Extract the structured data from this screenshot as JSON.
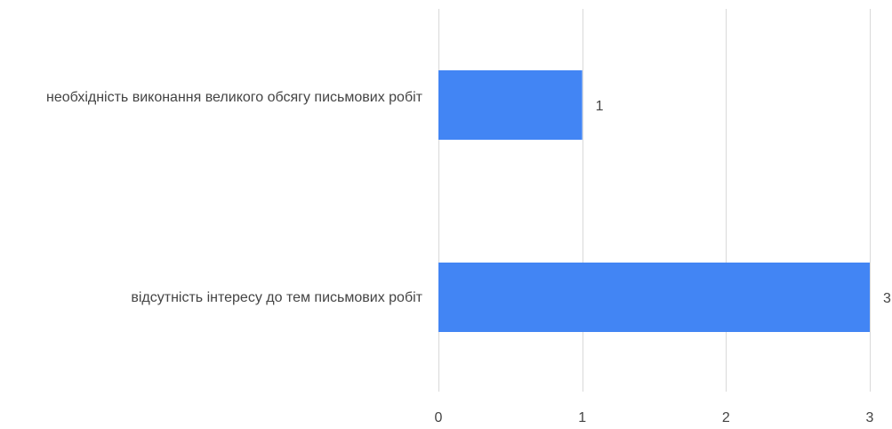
{
  "chart_data": {
    "type": "bar",
    "orientation": "horizontal",
    "categories": [
      "необхідність виконання великого обсягу письмових робіт",
      "відсутність інтересу до тем письмових робіт"
    ],
    "values": [
      1,
      3
    ],
    "xlim": [
      0,
      3
    ],
    "xticks": [
      0,
      1,
      2,
      3
    ],
    "grid": true,
    "bar_color": "#4285F4",
    "gridline_color": "#D9D9D9",
    "data_labels": true
  }
}
